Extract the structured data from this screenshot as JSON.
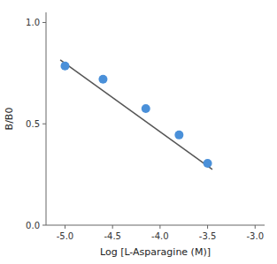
{
  "chart_data": {
    "type": "scatter",
    "xlabel": "Log [L-Asparagine (M)]",
    "ylabel": "B/B0",
    "series": [
      {
        "type": "scatter",
        "color": "#4a90d9",
        "x": [
          -5.0,
          -4.6,
          -4.15,
          -3.8,
          -3.5
        ],
        "values": [
          0.785,
          0.72,
          0.575,
          0.445,
          0.305
        ]
      },
      {
        "type": "line",
        "color": "#555555",
        "x": [
          -5.05,
          -3.45
        ],
        "values": [
          0.815,
          0.275
        ]
      }
    ],
    "xlim": [
      -5.2,
      -2.9
    ],
    "ylim": [
      0.0,
      1.05
    ],
    "xticks": [
      {
        "value": -5.0,
        "label": "-5.0"
      },
      -4.5,
      {
        "value": -4.0,
        "label": "-4.0"
      },
      -3.5,
      {
        "value": -3.0,
        "label": "-3.0"
      }
    ],
    "yticks": [
      {
        "value": 0.0,
        "label": "0.0"
      },
      0.5,
      {
        "value": 1.0,
        "label": "1.0"
      }
    ]
  }
}
